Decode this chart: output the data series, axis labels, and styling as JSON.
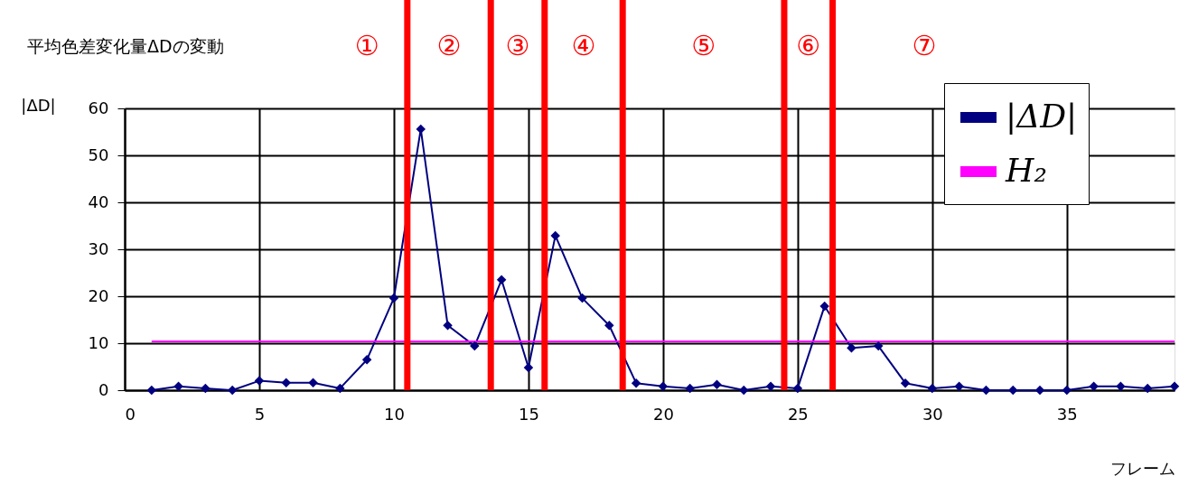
{
  "chart_data": {
    "type": "line",
    "title": "平均色差変化量ΔDの変動",
    "xlabel": "フレーム",
    "ylabel": "|ΔD|",
    "x": [
      1,
      2,
      3,
      4,
      5,
      6,
      7,
      8,
      9,
      10,
      11,
      12,
      13,
      14,
      15,
      16,
      17,
      18,
      19,
      20,
      21,
      22,
      23,
      24,
      25,
      26,
      27,
      28,
      29,
      30,
      31,
      32,
      33,
      34,
      35,
      36,
      37,
      38,
      39
    ],
    "series": [
      {
        "name": "|ΔD|",
        "color": "#000080",
        "marker": "diamond",
        "values": [
          0,
          0.8,
          0.4,
          0,
          2,
          1.6,
          1.6,
          0.4,
          6.5,
          19.6,
          55.6,
          13.8,
          9.4,
          23.5,
          4.8,
          32.9,
          19.6,
          13.8,
          1.5,
          0.8,
          0.4,
          1.2,
          0,
          0.8,
          0.4,
          17.9,
          9,
          9.4,
          1.5,
          0.4,
          0.8,
          0,
          0,
          0,
          0,
          0.8,
          0.8,
          0.4,
          0.8
        ]
      },
      {
        "name": "H₂",
        "color": "#ff00ff",
        "marker": "none",
        "x": [
          1,
          39
        ],
        "values": [
          10.4,
          10.4
        ]
      }
    ],
    "xlim": [
      0,
      39
    ],
    "xticks": [
      0,
      5,
      10,
      15,
      20,
      25,
      30,
      35
    ],
    "ylim": [
      0,
      60
    ],
    "yticks": [
      0,
      10,
      20,
      30,
      40,
      50,
      60
    ],
    "grid": true,
    "legend": "top right",
    "ref_lines": [
      {
        "axis": "x",
        "value": 10.5,
        "color": "#ff0000"
      },
      {
        "axis": "x",
        "value": 13.6,
        "color": "#ff0000"
      },
      {
        "axis": "x",
        "value": 15.6,
        "color": "#ff0000"
      },
      {
        "axis": "x",
        "value": 18.5,
        "color": "#ff0000"
      },
      {
        "axis": "x",
        "value": 24.5,
        "color": "#ff0000"
      },
      {
        "axis": "x",
        "value": 26.3,
        "color": "#ff0000"
      }
    ],
    "annotations": [
      "①",
      "②",
      "③",
      "④",
      "⑤",
      "⑥",
      "⑦"
    ]
  }
}
